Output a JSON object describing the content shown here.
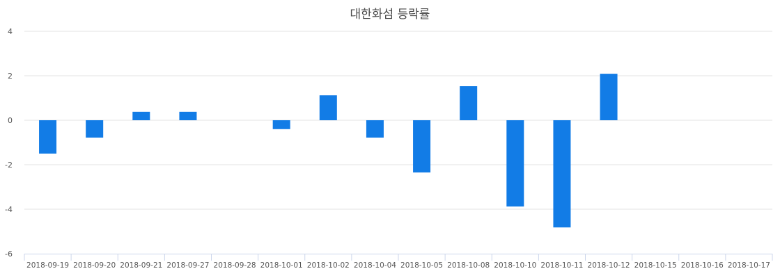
{
  "chart_data": {
    "type": "bar",
    "title": "대한화섬 등락률",
    "xlabel": "",
    "ylabel": "",
    "ylim": [
      -6,
      4
    ],
    "yticks": [
      4,
      2,
      0,
      -2,
      -4,
      -6
    ],
    "grid": true,
    "legend": null,
    "bar_color": "#127ce6",
    "categories": [
      "2018-09-19",
      "2018-09-20",
      "2018-09-21",
      "2018-09-27",
      "2018-09-28",
      "2018-10-01",
      "2018-10-02",
      "2018-10-04",
      "2018-10-05",
      "2018-10-08",
      "2018-10-10",
      "2018-10-11",
      "2018-10-12",
      "2018-10-15",
      "2018-10-16",
      "2018-10-17"
    ],
    "values": [
      -1.5,
      -0.78,
      0.38,
      0.38,
      0,
      -0.4,
      1.12,
      -0.78,
      -2.35,
      1.53,
      -3.88,
      -4.82,
      2.09,
      0,
      0,
      0
    ]
  }
}
